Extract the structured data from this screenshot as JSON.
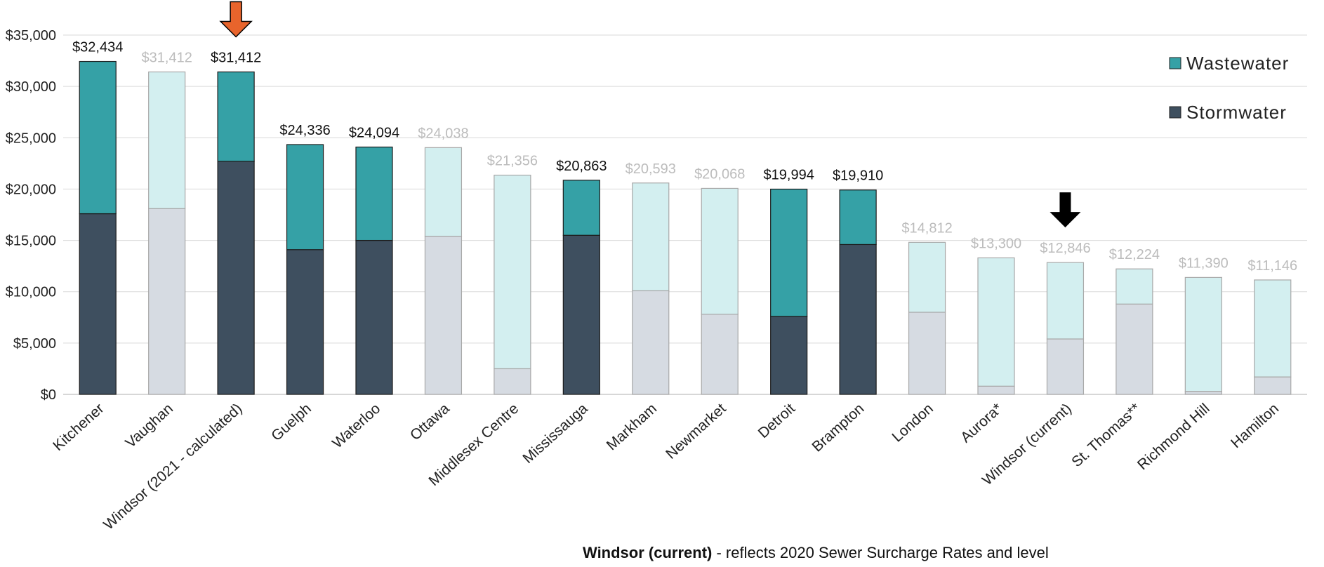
{
  "chart_data": {
    "type": "bar",
    "stacked": true,
    "categories": [
      "Kitchener",
      "Vaughan",
      "Windsor (2021 - calculated)",
      "Guelph",
      "Waterloo",
      "Ottawa",
      "Middlesex Centre",
      "Mississauga",
      "Markham",
      "Newmarket",
      "Detroit",
      "Brampton",
      "London",
      "Aurora*",
      "Windsor (current)",
      "St. Thomas**",
      "Richmond Hill",
      "Hamilton"
    ],
    "totals_labels": [
      "$32,434",
      "$31,412",
      "$31,412",
      "$24,336",
      "$24,094",
      "$24,038",
      "$21,356",
      "$20,863",
      "$20,593",
      "$20,068",
      "$19,994",
      "$19,910",
      "$14,812",
      "$13,300",
      "$12,846",
      "$12,224",
      "$11,390",
      "$11,146"
    ],
    "totals": [
      32434,
      31412,
      31412,
      24336,
      24094,
      24038,
      21356,
      20863,
      20593,
      20068,
      19994,
      19910,
      14812,
      13300,
      12846,
      12224,
      11390,
      11146
    ],
    "highlighted": [
      true,
      false,
      true,
      true,
      true,
      false,
      false,
      true,
      false,
      false,
      true,
      true,
      false,
      false,
      false,
      false,
      false,
      false
    ],
    "series": [
      {
        "name": "Stormwater",
        "values": [
          17600,
          18100,
          22700,
          14100,
          15000,
          15400,
          2500,
          15500,
          10100,
          7800,
          7600,
          14600,
          8000,
          800,
          5400,
          8800,
          300,
          1700
        ]
      },
      {
        "name": "Wastewater",
        "values": [
          14834,
          13312,
          8712,
          10236,
          9094,
          8638,
          18856,
          5363,
          10493,
          12268,
          12394,
          5310,
          6812,
          12500,
          7446,
          3424,
          11090,
          9446
        ]
      }
    ],
    "yticks": [
      "$0",
      "$5,000",
      "$10,000",
      "$15,000",
      "$20,000",
      "$25,000",
      "$30,000",
      "$35,000"
    ],
    "ylim": [
      0,
      35000
    ],
    "grid": true,
    "legend_position": "top-right",
    "markers": [
      {
        "category_index": 2,
        "type": "arrow-down",
        "color": "#e8642c"
      },
      {
        "category_index": 14,
        "type": "arrow-down",
        "color": "#000000"
      }
    ],
    "colors": {
      "wastewater": "#35a1a6",
      "stormwater": "#3e4f5f",
      "wastewater_faded": "#d3eff0",
      "stormwater_faded": "#d6dbe2",
      "label_dark": "#111111",
      "label_faded": "#bcbcbc"
    }
  },
  "footnote": {
    "bold": "Windsor (current)",
    "rest": " - reflects 2020 Sewer Surcharge Rates and level"
  }
}
